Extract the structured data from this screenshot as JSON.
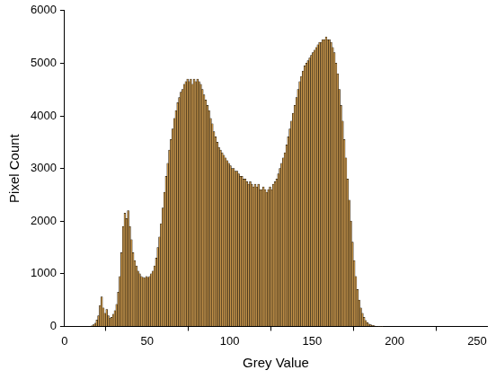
{
  "chart_data": {
    "type": "histogram",
    "x_label": "Grey Value",
    "y_label": "Pixel Count",
    "bins": [
      15,
      16,
      17,
      18,
      19,
      20,
      21,
      22,
      23,
      24,
      25,
      26,
      27,
      28,
      29,
      30,
      31,
      32,
      33,
      34,
      35,
      36,
      37,
      38,
      39,
      40,
      41,
      42,
      43,
      44,
      45,
      46,
      47,
      48,
      49,
      50,
      51,
      52,
      53,
      54,
      55,
      56,
      57,
      58,
      59,
      60,
      61,
      62,
      63,
      64,
      65,
      66,
      67,
      68,
      69,
      70,
      71,
      72,
      73,
      74,
      75,
      76,
      77,
      78,
      79,
      80,
      81,
      82,
      83,
      84,
      85,
      86,
      87,
      88,
      89,
      90,
      91,
      92,
      93,
      94,
      95,
      96,
      97,
      98,
      99,
      100,
      101,
      102,
      103,
      104,
      105,
      106,
      107,
      108,
      109,
      110,
      111,
      112,
      113,
      114,
      115,
      116,
      117,
      118,
      119,
      120,
      121,
      122,
      123,
      124,
      125,
      126,
      127,
      128,
      129,
      130,
      131,
      132,
      133,
      134,
      135,
      136,
      137,
      138,
      139,
      140,
      141,
      142,
      143,
      144,
      145,
      146,
      147,
      148,
      149,
      150,
      151,
      152,
      153,
      154,
      155,
      156,
      157,
      158,
      159,
      160,
      161,
      162,
      163,
      164,
      165,
      166,
      167,
      168,
      169,
      170,
      171,
      172,
      173,
      174,
      175,
      176,
      177,
      178,
      179,
      180,
      181,
      182,
      183,
      184,
      185,
      186,
      187,
      188,
      189,
      190,
      191,
      192,
      193,
      194
    ],
    "values": [
      0,
      10,
      30,
      60,
      120,
      200,
      400,
      560,
      350,
      250,
      320,
      200,
      150,
      170,
      230,
      300,
      420,
      650,
      950,
      1400,
      1900,
      2150,
      2050,
      2200,
      1900,
      1650,
      1400,
      1250,
      1150,
      1050,
      1000,
      950,
      930,
      920,
      950,
      930,
      950,
      1000,
      1050,
      1150,
      1300,
      1500,
      1700,
      1950,
      2250,
      2550,
      2850,
      3100,
      3350,
      3550,
      3750,
      3950,
      4100,
      4250,
      4350,
      4450,
      4500,
      4600,
      4650,
      4700,
      4650,
      4700,
      4600,
      4700,
      4650,
      4700,
      4650,
      4600,
      4500,
      4400,
      4300,
      4200,
      4100,
      3950,
      3850,
      3700,
      3600,
      3500,
      3400,
      3350,
      3300,
      3250,
      3200,
      3150,
      3100,
      3050,
      3000,
      3000,
      2950,
      2950,
      2900,
      2850,
      2850,
      2800,
      2800,
      2750,
      2700,
      2750,
      2700,
      2650,
      2700,
      2650,
      2700,
      2600,
      2600,
      2650,
      2600,
      2550,
      2600,
      2650,
      2600,
      2700,
      2750,
      2800,
      2900,
      3000,
      3100,
      3200,
      3300,
      3450,
      3600,
      3750,
      3900,
      4050,
      4200,
      4350,
      4500,
      4650,
      4750,
      4850,
      4950,
      5000,
      5050,
      5100,
      5150,
      5200,
      5250,
      5300,
      5350,
      5400,
      5400,
      5450,
      5450,
      5500,
      5450,
      5450,
      5400,
      5300,
      5200,
      5000,
      4800,
      4500,
      4200,
      3900,
      3550,
      3200,
      2800,
      2400,
      2000,
      1600,
      1250,
      950,
      700,
      500,
      350,
      250,
      170,
      110,
      70,
      45,
      30,
      20,
      12,
      8,
      5,
      3,
      2,
      1,
      0
    ],
    "color": "#c8964b",
    "xlim": [
      0,
      256
    ],
    "xticks": [
      0,
      50,
      100,
      150,
      200,
      250
    ],
    "ylim": [
      0,
      6000
    ],
    "yticks": [
      0,
      1000,
      2000,
      3000,
      4000,
      5000,
      6000
    ],
    "grid": false
  }
}
